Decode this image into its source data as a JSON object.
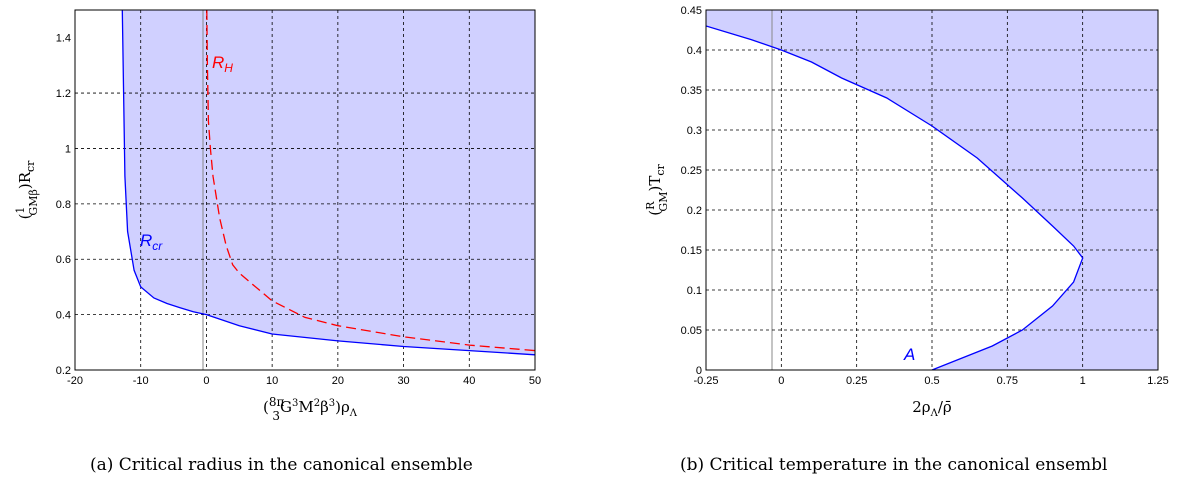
{
  "chart_data": [
    {
      "type": "area",
      "xlim": [
        -20,
        50
      ],
      "ylim": [
        0.2,
        1.5
      ],
      "xticks": [
        -20,
        -10,
        0,
        10,
        20,
        30,
        40,
        50
      ],
      "yticks": [
        0.2,
        0.4,
        0.6,
        0.8,
        1,
        1.2,
        1.4
      ],
      "xtick_labels": [
        "-20",
        "-10",
        "0",
        "10",
        "20",
        "30",
        "40",
        "50"
      ],
      "ytick_labels": [
        "0.2",
        "0.4",
        "0.6",
        "0.8",
        "1",
        "1.2",
        "1.4"
      ],
      "grid": true,
      "caption": "(a) Critical radius in the canonical ensemble",
      "series": [
        {
          "name": "R_cr",
          "color": "#0000ff",
          "fill": "#d0d0ff",
          "style": "solid",
          "x": [
            -12.8,
            -12.6,
            -12.4,
            -12.0,
            -11.0,
            -10.0,
            -8.0,
            -6.0,
            -4.0,
            -2.0,
            0.0,
            5.0,
            10.0,
            20.0,
            30.0,
            40.0,
            50.0
          ],
          "y": [
            1.5,
            1.2,
            0.9,
            0.7,
            0.56,
            0.5,
            0.46,
            0.44,
            0.425,
            0.41,
            0.4,
            0.36,
            0.33,
            0.305,
            0.285,
            0.27,
            0.255
          ]
        },
        {
          "name": "R_H",
          "color": "#ff0000",
          "style": "dashed",
          "x": [
            0.05,
            0.15,
            0.3,
            0.6,
            1.0,
            2.0,
            3.0,
            4.0,
            5.0,
            7.0,
            10.0,
            15.0,
            20.0,
            30.0,
            40.0,
            50.0
          ],
          "y": [
            1.5,
            1.3,
            1.1,
            1.0,
            0.9,
            0.75,
            0.65,
            0.58,
            0.55,
            0.51,
            0.45,
            0.39,
            0.36,
            0.32,
            0.29,
            0.27
          ]
        }
      ],
      "annotations": [
        {
          "text": "R",
          "sub": "H",
          "x": 1.2,
          "y": 1.3,
          "color": "#ff0000"
        },
        {
          "text": "R",
          "sub": "cr",
          "x": -10.0,
          "y": 0.6,
          "color": "#0000ff"
        }
      ]
    },
    {
      "type": "area",
      "xlim": [
        -0.25,
        1.25
      ],
      "ylim": [
        0,
        0.45
      ],
      "xticks": [
        -0.25,
        0,
        0.25,
        0.5,
        0.75,
        1,
        1.25
      ],
      "yticks": [
        0,
        0.05,
        0.1,
        0.15,
        0.2,
        0.25,
        0.3,
        0.35,
        0.4,
        0.45
      ],
      "xtick_labels": [
        "-0.25",
        "0",
        "0.25",
        "0.5",
        "0.75",
        "1",
        "1.25"
      ],
      "ytick_labels": [
        "0",
        "0.05",
        "0.1",
        "0.15",
        "0.2",
        "0.25",
        "0.3",
        "0.35",
        "0.4",
        "0.45"
      ],
      "grid": true,
      "caption": "(b) Critical temperature in the canonical ensembl",
      "series": [
        {
          "name": "T_cr",
          "color": "#0000ff",
          "fill": "#d0d0ff",
          "style": "solid",
          "x": [
            -0.25,
            -0.1,
            0,
            0.1,
            0.2,
            0.35,
            0.5,
            0.65,
            0.8,
            0.9,
            0.97,
            1.0,
            0.97,
            0.9,
            0.8,
            0.7,
            0.5
          ],
          "y": [
            0.43,
            0.413,
            0.4,
            0.385,
            0.365,
            0.34,
            0.305,
            0.265,
            0.215,
            0.18,
            0.155,
            0.14,
            0.11,
            0.08,
            0.05,
            0.03,
            0.0
          ]
        }
      ],
      "annotations": [
        {
          "text": "A",
          "x": 0.44,
          "y": 0.01,
          "color": "#0000ff"
        }
      ]
    }
  ]
}
